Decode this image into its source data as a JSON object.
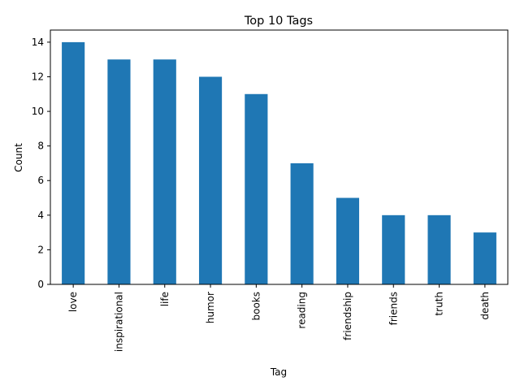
{
  "chart_data": {
    "type": "bar",
    "title": "Top 10 Tags",
    "xlabel": "Tag",
    "ylabel": "Count",
    "categories": [
      "love",
      "inspirational",
      "life",
      "humor",
      "books",
      "reading",
      "friendship",
      "friends",
      "truth",
      "death"
    ],
    "values": [
      14,
      13,
      13,
      12,
      11,
      7,
      5,
      4,
      4,
      3
    ],
    "ylim": [
      0,
      14.7
    ],
    "yticks": [
      0,
      2,
      4,
      6,
      8,
      10,
      12,
      14
    ],
    "bar_color": "#1f77b4",
    "grid": false,
    "legend": "none"
  }
}
